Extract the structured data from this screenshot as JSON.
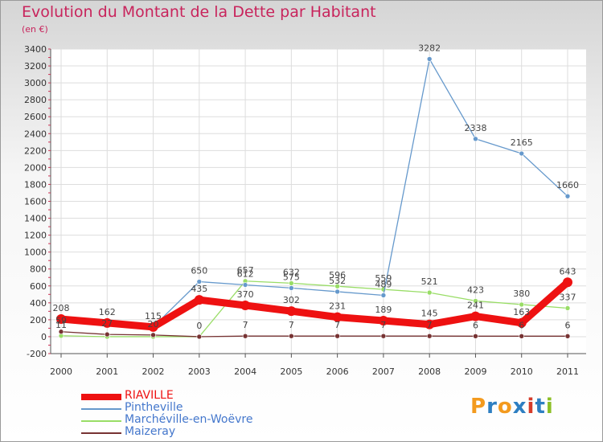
{
  "header": {
    "title": "Evolution du Montant de la Dette par Habitant",
    "unit": "(en €)"
  },
  "logo": {
    "text": "Proxiti",
    "letters": [
      "P",
      "r",
      "o",
      "x",
      "i",
      "t",
      "i"
    ],
    "colors": [
      "#f39a1e",
      "#2e7fc2",
      "#f39a1e",
      "#2e7fc2",
      "#d63c2a",
      "#2e7fc2",
      "#8cbf26"
    ]
  },
  "chart_data": {
    "type": "line",
    "title": "Evolution du Montant de la Dette par Habitant",
    "ylabel": "(en €)",
    "xlabel": "",
    "x": [
      "2000",
      "2001",
      "2002",
      "2003",
      "2004",
      "2005",
      "2006",
      "2007",
      "2008",
      "2009",
      "2010",
      "2011"
    ],
    "ylim": [
      -200,
      3400
    ],
    "yticks": [
      -200,
      0,
      200,
      400,
      600,
      800,
      1000,
      1200,
      1400,
      1600,
      1800,
      2000,
      2200,
      2400,
      2600,
      2800,
      3000,
      3200,
      3400
    ],
    "grid": true,
    "legend_position": "bottom-left",
    "series": [
      {
        "name": "RIAVILLE",
        "color": "#ee1111",
        "values": [
          208,
          162,
          115,
          435,
          370,
          302,
          231,
          189,
          145,
          241,
          163,
          643
        ],
        "labels": [
          "208",
          "162",
          "115",
          "435",
          "370",
          "302",
          "231",
          "189",
          "145",
          "241",
          "163",
          "643"
        ]
      },
      {
        "name": "Pintheville",
        "color": "#6699cc",
        "values": [
          null,
          null,
          115,
          650,
          612,
          575,
          532,
          489,
          3282,
          2338,
          2165,
          1660
        ],
        "labels": [
          "",
          "",
          "",
          "650",
          "612",
          "575",
          "532",
          "489",
          "3282",
          "2338",
          "2165",
          "1660"
        ]
      },
      {
        "name": "Marchéville-en-Woëvre",
        "color": "#99dd66",
        "values": [
          11,
          0,
          0,
          0,
          657,
          632,
          596,
          559,
          521,
          423,
          380,
          337
        ],
        "labels": [
          "11",
          "",
          "",
          "",
          "657",
          "632",
          "596",
          "559",
          "521",
          "423",
          "380",
          "337"
        ]
      },
      {
        "name": "Maizeray",
        "color": "#773333",
        "values": [
          59,
          27,
          20,
          0,
          7,
          7,
          7,
          7,
          7,
          6,
          6,
          6
        ],
        "labels": [
          "59",
          "27",
          "20",
          "0",
          "7",
          "7",
          "7",
          "7",
          "7",
          "6",
          "6",
          "6"
        ]
      }
    ]
  }
}
